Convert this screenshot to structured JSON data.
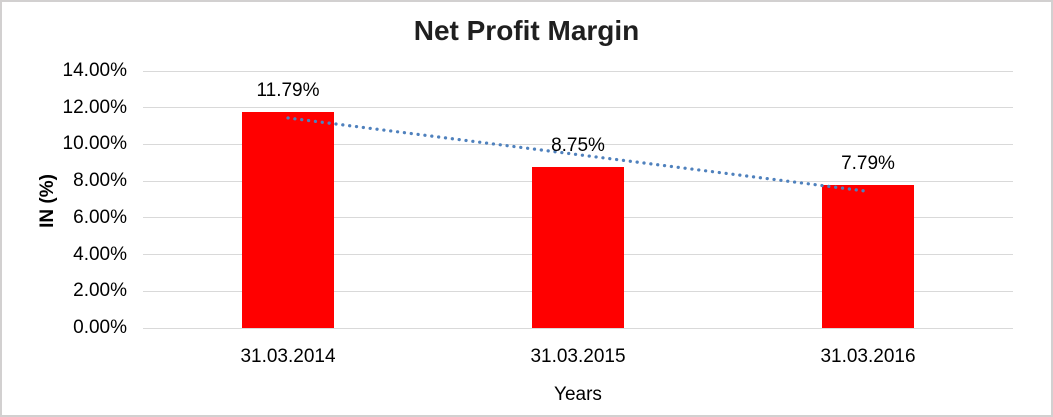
{
  "chart_data": {
    "type": "bar",
    "title": "Net Profit Margin",
    "categories": [
      "31.03.2014",
      "31.03.2015",
      "31.03.2016"
    ],
    "values": [
      11.79,
      8.75,
      7.79
    ],
    "data_labels": [
      "11.79%",
      "8.75%",
      "7.79%"
    ],
    "xlabel": "Years",
    "ylabel": "IN (%)",
    "ylim": [
      0,
      14
    ],
    "ytick_step": 2,
    "ytick_labels": [
      "0.00%",
      "2.00%",
      "4.00%",
      "6.00%",
      "8.00%",
      "10.00%",
      "12.00%",
      "14.00%"
    ],
    "grid": "horizontal",
    "legend": "none",
    "trendline": {
      "type": "linear",
      "style": "dotted",
      "color": "#4F81BD"
    },
    "colors": {
      "bar": "#FF0000",
      "gridline": "#D9D9D9",
      "axis_line": "#D9D9D9",
      "text": "#000000",
      "title_text": "#1F1F1F",
      "border": "#D2D0D0",
      "background": "#FFFFFF"
    }
  }
}
